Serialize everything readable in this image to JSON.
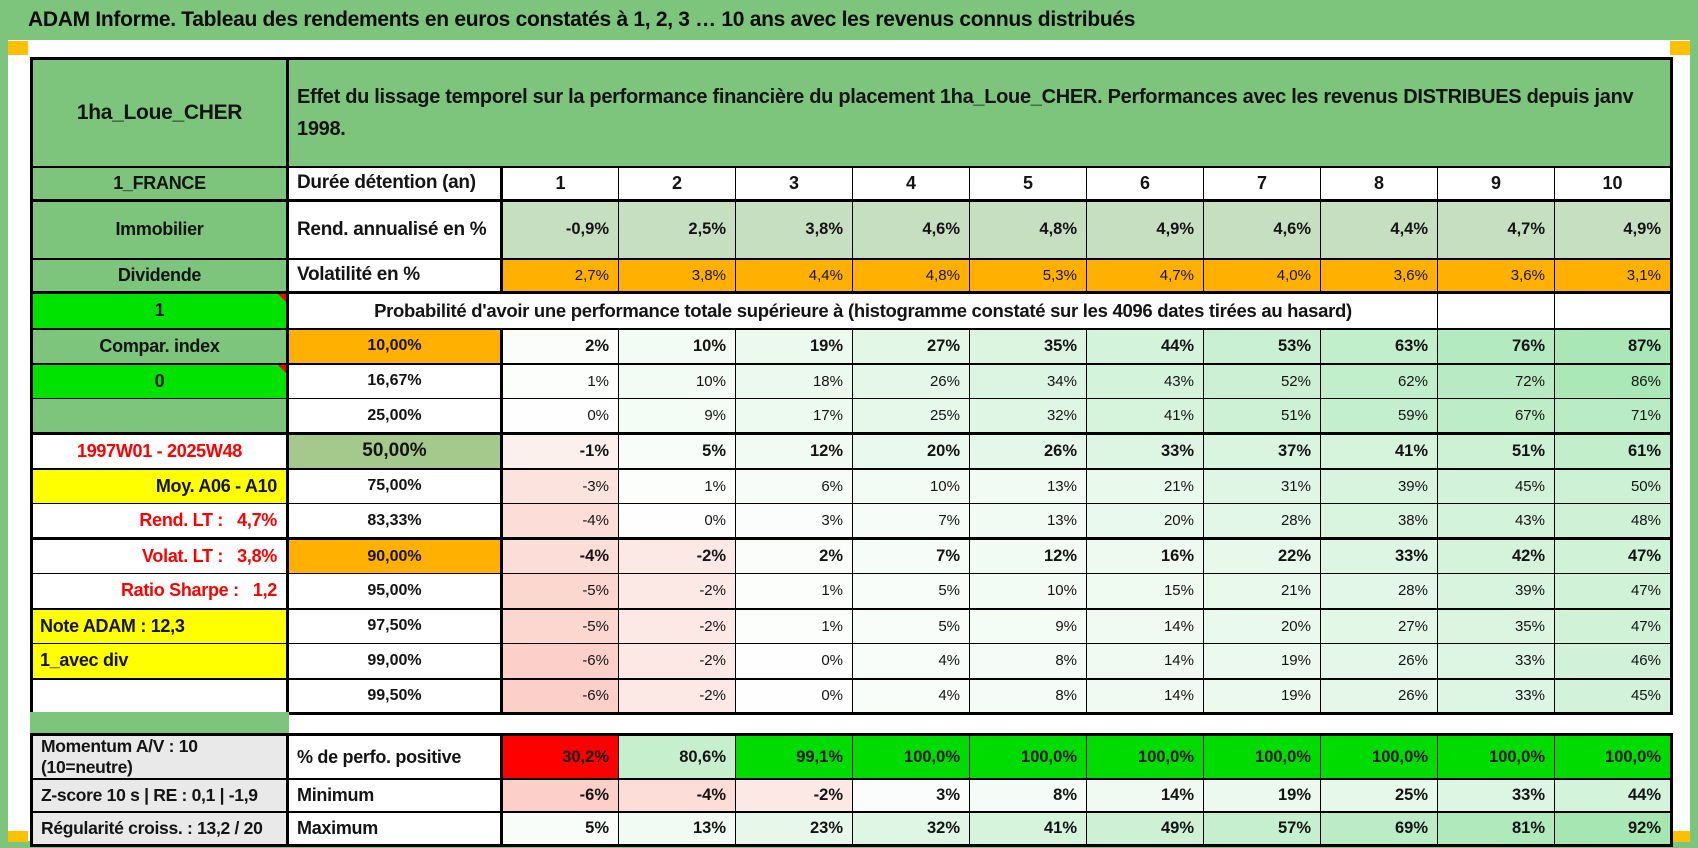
{
  "banner": {
    "title": "ADAM Informe. Tableau des rendements en euros constatés à 1, 2, 3 … 10 ans avec les revenus connus distribués"
  },
  "header": {
    "asset": "1ha_Loue_CHER",
    "description": "Effet du lissage temporel sur la performance financière du placement 1ha_Loue_CHER. Performances avec les revenus DISTRIBUES depuis janv 1998."
  },
  "duration_row": {
    "side": "1_FRANCE",
    "label": "Durée détention (an)",
    "years": [
      "1",
      "2",
      "3",
      "4",
      "5",
      "6",
      "7",
      "8",
      "9",
      "10"
    ]
  },
  "returns_row": {
    "side": "Immobilier",
    "label": "Rend. annualisé en %",
    "values": [
      "-0,9%",
      "2,5%",
      "3,8%",
      "4,6%",
      "4,8%",
      "4,9%",
      "4,6%",
      "4,4%",
      "4,7%",
      "4,9%"
    ]
  },
  "volatility_row": {
    "side": "Dividende",
    "label": "Volatilité en %",
    "values": [
      "2,7%",
      "3,8%",
      "4,4%",
      "4,8%",
      "5,3%",
      "4,7%",
      "4,0%",
      "3,6%",
      "3,6%",
      "3,1%"
    ]
  },
  "probability_header": {
    "side": "1",
    "text": "Probabilité d'avoir une performance totale supérieure à (histogramme constaté sur les 4096 dates tirées au hasard)"
  },
  "probability_rows": [
    {
      "side": "Compar. index",
      "side_style": "green",
      "threshold": "10,00%",
      "threshold_style": "orange",
      "bold": true,
      "values": [
        "2%",
        "10%",
        "19%",
        "27%",
        "35%",
        "44%",
        "53%",
        "63%",
        "76%",
        "87%"
      ]
    },
    {
      "side": "0",
      "side_style": "bright",
      "side_note": true,
      "threshold": "16,67%",
      "threshold_style": "white",
      "bold": false,
      "values": [
        "1%",
        "10%",
        "18%",
        "26%",
        "34%",
        "43%",
        "52%",
        "62%",
        "72%",
        "86%"
      ]
    },
    {
      "side": "",
      "side_style": "green",
      "threshold": "25,00%",
      "threshold_style": "white",
      "bold": false,
      "values": [
        "0%",
        "9%",
        "17%",
        "25%",
        "32%",
        "41%",
        "51%",
        "59%",
        "67%",
        "71%"
      ]
    },
    {
      "side": "1997W01 - 2025W48",
      "side_style": "red-center",
      "threshold": "50,00%",
      "threshold_style": "green",
      "bold": true,
      "values": [
        "-1%",
        "5%",
        "12%",
        "20%",
        "26%",
        "33%",
        "37%",
        "41%",
        "51%",
        "61%"
      ]
    },
    {
      "side": "Moy. A06 - A10",
      "side_style": "yellow-right",
      "threshold": "75,00%",
      "threshold_style": "white",
      "bold": false,
      "values": [
        "-3%",
        "1%",
        "6%",
        "10%",
        "13%",
        "21%",
        "31%",
        "39%",
        "45%",
        "50%"
      ]
    },
    {
      "side": "Rend. LT :   4,7%",
      "side_style": "red-right",
      "threshold": "83,33%",
      "threshold_style": "white",
      "bold": false,
      "values": [
        "-4%",
        "0%",
        "3%",
        "7%",
        "13%",
        "20%",
        "28%",
        "38%",
        "43%",
        "48%"
      ]
    },
    {
      "side": "Volat. LT :   3,8%",
      "side_style": "red-right",
      "threshold": "90,00%",
      "threshold_style": "orange",
      "bold": true,
      "values": [
        "-4%",
        "-2%",
        "2%",
        "7%",
        "12%",
        "16%",
        "22%",
        "33%",
        "42%",
        "47%"
      ]
    },
    {
      "side": "Ratio Sharpe :   1,2",
      "side_style": "red-right",
      "threshold": "95,00%",
      "threshold_style": "white",
      "bold": false,
      "values": [
        "-5%",
        "-2%",
        "1%",
        "5%",
        "10%",
        "15%",
        "21%",
        "28%",
        "39%",
        "47%"
      ]
    },
    {
      "side": "Note ADAM : 12,3",
      "side_style": "yellow-left",
      "threshold": "97,50%",
      "threshold_style": "white",
      "bold": false,
      "values": [
        "-5%",
        "-2%",
        "1%",
        "5%",
        "9%",
        "14%",
        "20%",
        "27%",
        "35%",
        "47%"
      ]
    },
    {
      "side": "1_avec div",
      "side_style": "yellow-left",
      "threshold": "99,00%",
      "threshold_style": "white",
      "bold": false,
      "values": [
        "-6%",
        "-2%",
        "0%",
        "4%",
        "8%",
        "14%",
        "19%",
        "26%",
        "33%",
        "46%"
      ]
    },
    {
      "side": "",
      "side_style": "white",
      "threshold": "99,50%",
      "threshold_style": "white",
      "bold": false,
      "values": [
        "-6%",
        "-2%",
        "0%",
        "4%",
        "8%",
        "14%",
        "19%",
        "26%",
        "33%",
        "45%"
      ]
    }
  ],
  "footer_rows": [
    {
      "side": "Momentum A/V : 10 (10=neutre)",
      "label": "% de perfo. positive",
      "values": [
        "30,2%",
        "80,6%",
        "99,1%",
        "100,0%",
        "100,0%",
        "100,0%",
        "100,0%",
        "100,0%",
        "100,0%",
        "100,0%"
      ],
      "cell_colors": [
        "#ff0000",
        "#c6efce",
        "#00db00",
        "#00db00",
        "#00db00",
        "#00db00",
        "#00db00",
        "#00db00",
        "#00db00",
        "#00db00"
      ]
    },
    {
      "side": "Z-score 10 s | RE : 0,1 | -1,9",
      "label": "Minimum",
      "scale": true,
      "values": [
        "-6%",
        "-4%",
        "-2%",
        "3%",
        "8%",
        "14%",
        "19%",
        "25%",
        "33%",
        "44%"
      ]
    },
    {
      "side": "Régularité croiss. : 13,2 / 20",
      "label": "Maximum",
      "scale": true,
      "values": [
        "5%",
        "13%",
        "23%",
        "32%",
        "41%",
        "49%",
        "57%",
        "69%",
        "81%",
        "92%"
      ]
    }
  ],
  "colors": {
    "green": "#7dc57d",
    "bright_green": "#00e300",
    "muted_green": "#a5c98c",
    "orange": "#ffb000",
    "yellow": "#ffff00",
    "red": "#ff0000",
    "gray": "#e9e9e9",
    "light_green_row": "#c7dfc1",
    "marker": "#ffc000"
  }
}
